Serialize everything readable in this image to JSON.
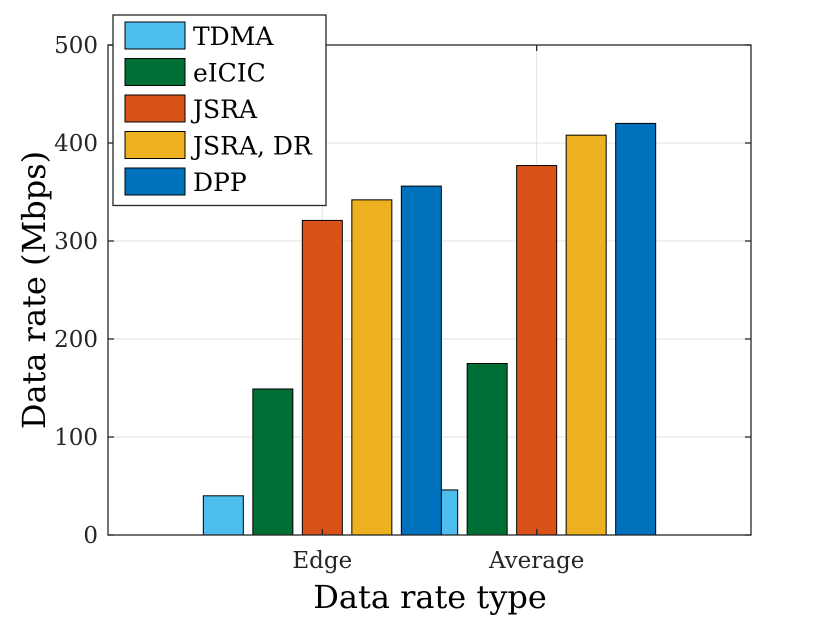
{
  "chart_data": {
    "type": "bar",
    "xlabel": "Data rate type",
    "ylabel": "Data rate (Mbps)",
    "categories": [
      "Edge",
      "Average"
    ],
    "ylim": [
      0,
      500
    ],
    "yticks": [
      0,
      100,
      200,
      300,
      400,
      500
    ],
    "grid": true,
    "legend_position": "top-left",
    "series": [
      {
        "name": "TDMA",
        "color": "#4DBEEE",
        "values": [
          40,
          46
        ]
      },
      {
        "name": "eICIC",
        "color": "#006F36",
        "values": [
          149,
          175
        ]
      },
      {
        "name": "JSRA",
        "color": "#D95319",
        "values": [
          321,
          377
        ]
      },
      {
        "name": "JSRA, DR",
        "color": "#EDB120",
        "values": [
          342,
          408
        ]
      },
      {
        "name": "DPP",
        "color": "#0072BD",
        "values": [
          356,
          420
        ]
      }
    ]
  }
}
